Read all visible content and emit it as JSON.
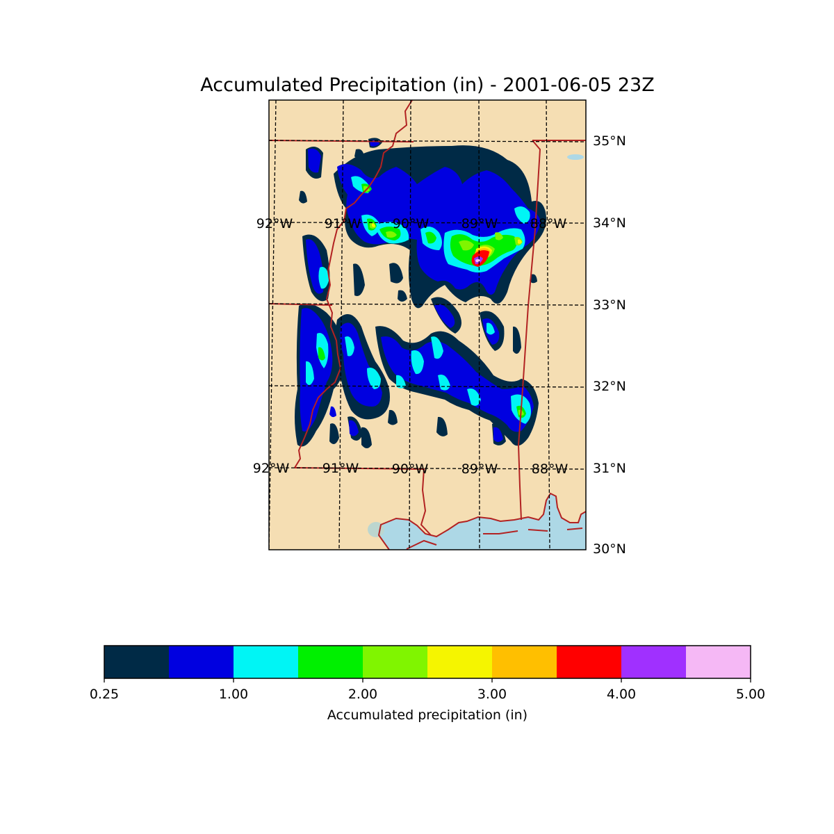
{
  "title": "Accumulated Precipitation (in) - 2001-06-05 23Z",
  "map": {
    "land_color": "#f5deb3",
    "water_color": "#add8e6",
    "border_color": "#b22222",
    "grid_style": "dashed",
    "lat_labels": [
      "35°N",
      "34°N",
      "33°N",
      "32°N",
      "31°N",
      "30°N"
    ],
    "lon_labels_mid": [
      "92°W",
      "91°W",
      "90°W",
      "89°W",
      "88°W"
    ],
    "lon_labels_bottom": [
      "92°W",
      "91°W",
      "90°W",
      "89°W",
      "88°W"
    ]
  },
  "colorbar": {
    "label": "Accumulated precipitation (in)",
    "tick_labels": [
      "0.25",
      "1.00",
      "2.00",
      "3.00",
      "4.00",
      "5.00"
    ],
    "colors": [
      "#002a46",
      "#0000e0",
      "#00f5f5",
      "#00f000",
      "#80f500",
      "#f5f500",
      "#ffbf00",
      "#ff0000",
      "#a030ff",
      "#f5b8f5"
    ]
  }
}
